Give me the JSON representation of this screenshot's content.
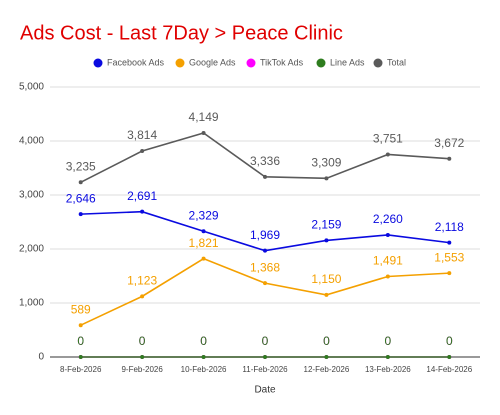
{
  "chart_data": {
    "type": "line",
    "title": "Ads Cost - Last 7Day > Peace Clinic",
    "x_label": "Date",
    "categories": [
      "8-Feb-2026",
      "9-Feb-2026",
      "10-Feb-2026",
      "11-Feb-2026",
      "12-Feb-2026",
      "13-Feb-2026",
      "14-Feb-2026"
    ],
    "ylim": [
      0,
      5000
    ],
    "yticks": [
      0,
      {
        "value": 1000,
        "label": "1,000"
      },
      {
        "value": 2000,
        "label": "2,000"
      },
      {
        "value": 3000,
        "label": "3,000"
      },
      {
        "value": 4000,
        "label": "4,000"
      },
      {
        "value": 5000,
        "label": "5,000"
      }
    ],
    "grid": true,
    "legend": "top",
    "series": [
      {
        "name": "Facebook Ads",
        "color": "#0a0ae0",
        "values": [
          2646,
          2691,
          2329,
          1969,
          2159,
          2260,
          2118
        ],
        "value_labels": [
          "2,646",
          "2,691",
          "2,329",
          "1,969",
          "2,159",
          "2,260",
          "2,118"
        ]
      },
      {
        "name": "Google Ads",
        "color": "#f4a000",
        "values": [
          589,
          1123,
          1821,
          1368,
          1150,
          1491,
          1553
        ],
        "value_labels": [
          "589",
          "1,123",
          "1,821",
          "1,368",
          "1,150",
          "1,491",
          "1,553"
        ]
      },
      {
        "name": "TikTok Ads",
        "color": "#ff00ff",
        "values": [
          0,
          0,
          0,
          0,
          0,
          0,
          0
        ]
      },
      {
        "name": "Line Ads",
        "color": "#2e7d1e",
        "values": [
          0,
          0,
          0,
          0,
          0,
          0,
          0
        ]
      },
      {
        "name": "Total",
        "color": "#5a5a5a",
        "values": [
          3235,
          3814,
          4149,
          3336,
          3309,
          3751,
          3672
        ],
        "value_labels": [
          "3,235",
          "3,814",
          "4,149",
          "3,336",
          "3,309",
          "3,751",
          "3,672"
        ]
      }
    ]
  }
}
